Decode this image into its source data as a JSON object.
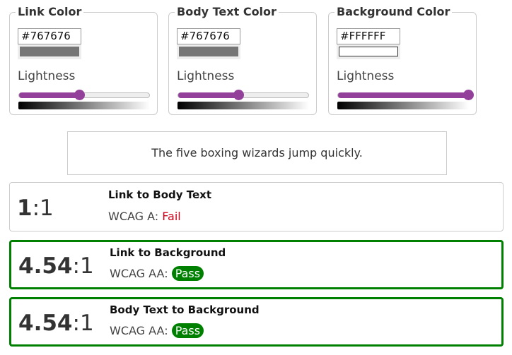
{
  "pickers": [
    {
      "legend": "Link Color",
      "hex": "#767676",
      "swatch": "#767676",
      "lightness_label": "Lightness",
      "lightness_percent": 46
    },
    {
      "legend": "Body Text Color",
      "hex": "#767676",
      "swatch": "#767676",
      "lightness_label": "Lightness",
      "lightness_percent": 46
    },
    {
      "legend": "Background Color",
      "hex": "#FFFFFF",
      "swatch": "#FFFFFF",
      "lightness_label": "Lightness",
      "lightness_percent": 100
    }
  ],
  "preview": {
    "text": "The five boxing wizards jump quickly."
  },
  "results": [
    {
      "ratio_bold": "1",
      "ratio_rest": ":1",
      "title": "Link to Body Text",
      "wcag_label": "WCAG A:",
      "status": "Fail",
      "passed": false
    },
    {
      "ratio_bold": "4.54",
      "ratio_rest": ":1",
      "title": "Link to Background",
      "wcag_label": "WCAG AA:",
      "status": "Pass",
      "passed": true
    },
    {
      "ratio_bold": "4.54",
      "ratio_rest": ":1",
      "title": "Body Text to Background",
      "wcag_label": "WCAG AA:",
      "status": "Pass",
      "passed": true
    }
  ],
  "colors": {
    "accent": "#93409a",
    "pass": "#008000",
    "fail": "#d0021b"
  }
}
